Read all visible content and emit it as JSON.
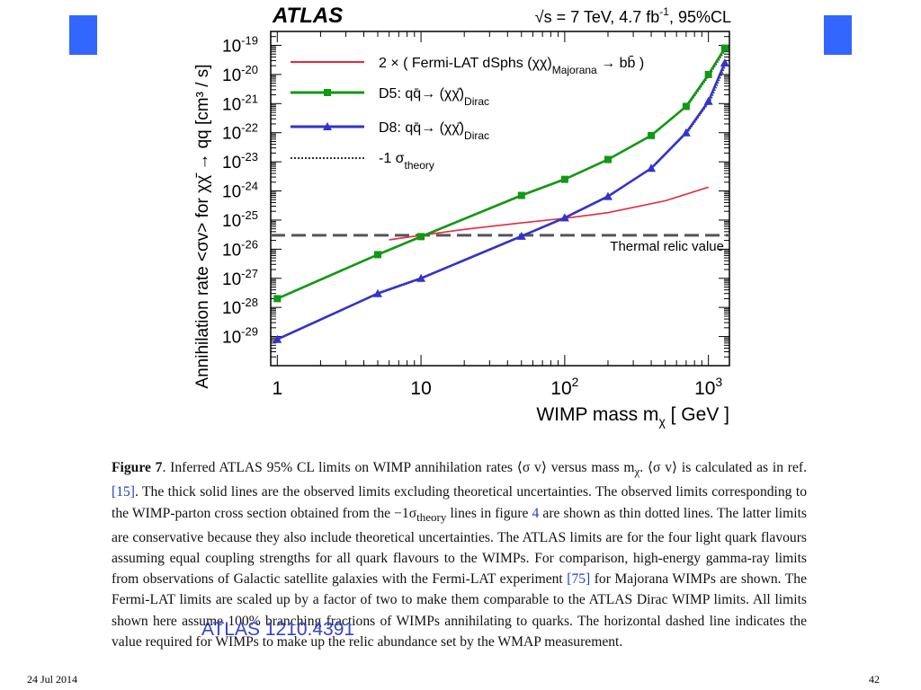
{
  "slide": {
    "date": "24 Jul 2014",
    "page_number": "42",
    "reference": "ATLAS 1210.4391",
    "accent_color": "#3366ff"
  },
  "caption": {
    "label": "Figure 7",
    "text_1": ". Inferred ATLAS 95% CL limits on WIMP annihilation rates ⟨σ v⟩ versus mass m",
    "text_1_sub": "χ",
    "text_2": ". ⟨σ v⟩ is calculated as in ref. ",
    "ref_1": "[15]",
    "text_3": ". The thick solid lines are the observed limits excluding theoretical uncertainties. The observed limits corresponding to the WIMP-parton cross section obtained from the −1σ",
    "text_3_sub": "theory",
    "text_4": " lines in figure ",
    "ref_2": "4",
    "text_5": " are shown as thin dotted lines. The latter limits are conservative because they also include theoretical uncertainties. The ATLAS limits are for the four light quark flavours assuming equal coupling strengths for all quark flavours to the WIMPs. For comparison, high-energy gamma-ray limits from observations of Galactic satellite galaxies with the Fermi-LAT experiment ",
    "ref_3": "[75]",
    "text_6": " for Majorana WIMPs are shown. The Fermi-LAT limits are scaled up by a factor of two to make them comparable to the ATLAS Dirac WIMP limits. All limits shown here assume 100% branching fractions of WIMPs annihilating to quarks. The horizontal dashed line indicates the value required for WIMPs to make up the relic abundance set by the WMAP measurement."
  },
  "chart_data": {
    "type": "line",
    "experiment_label": "ATLAS",
    "energy_label": "√s = 7 TeV, 4.7 fb",
    "energy_sup": "-1",
    "energy_suffix": ", 95%CL",
    "xlabel": "WIMP mass m",
    "xlabel_sub": "χ",
    "xlabel_suffix": " [ GeV ]",
    "ylabel": "Annihilation rate <σv> for χχ̄ → qq  [cm³ / s]",
    "xscale": "log",
    "yscale": "log",
    "xlim": [
      0.9,
      1400
    ],
    "ylim": [
      1e-30,
      3e-19
    ],
    "x_ticks": [
      {
        "v": 1,
        "base": "1",
        "sup": ""
      },
      {
        "v": 10,
        "base": "10",
        "sup": ""
      },
      {
        "v": 100,
        "base": "10",
        "sup": "2"
      },
      {
        "v": 1000,
        "base": "10",
        "sup": "3"
      }
    ],
    "y_ticks": [
      {
        "v": 1e-19,
        "base": "10",
        "sup": "-19"
      },
      {
        "v": 1e-20,
        "base": "10",
        "sup": "-20"
      },
      {
        "v": 1e-21,
        "base": "10",
        "sup": "-21"
      },
      {
        "v": 1e-22,
        "base": "10",
        "sup": "-22"
      },
      {
        "v": 1e-23,
        "base": "10",
        "sup": "-23"
      },
      {
        "v": 1e-24,
        "base": "10",
        "sup": "-24"
      },
      {
        "v": 1e-25,
        "base": "10",
        "sup": "-25"
      },
      {
        "v": 1e-26,
        "base": "10",
        "sup": "-26"
      },
      {
        "v": 1e-27,
        "base": "10",
        "sup": "-27"
      },
      {
        "v": 1e-28,
        "base": "10",
        "sup": "-28"
      },
      {
        "v": 1e-29,
        "base": "10",
        "sup": "-29"
      }
    ],
    "thermal_relic": {
      "value": 3e-26,
      "label": "Thermal relic value"
    },
    "series": [
      {
        "name": "2 × ( Fermi-LAT dSphs (χχ)Majorana → bb̄ )",
        "legend_main": "2 × ( Fermi-LAT dSphs (χχ)",
        "legend_sub": "Majorana",
        "legend_end": " → bb̄ )",
        "color": "#e8283c",
        "style": "line",
        "x": [
          6,
          10,
          20,
          50,
          100,
          200,
          500,
          1000
        ],
        "y": [
          2.1e-26,
          3e-26,
          4.8e-26,
          8e-26,
          1.15e-25,
          1.8e-25,
          4.6e-25,
          1.35e-24
        ]
      },
      {
        "name": "D5: qq̄ → (χχ̄)Dirac",
        "legend_main": "D5: qq̄→ (χχ̄)",
        "legend_sub": "Dirac",
        "legend_end": "",
        "color": "#119911",
        "style": "line-square",
        "x": [
          1,
          5,
          10,
          50,
          100,
          200,
          400,
          700,
          1000,
          1300
        ],
        "y": [
          2e-28,
          6.5e-27,
          2.7e-26,
          7e-25,
          2.5e-24,
          1.2e-23,
          8e-23,
          8e-22,
          1e-20,
          8e-20
        ]
      },
      {
        "name": "D8: qq̄ → (χχ̄)Dirac",
        "legend_main": "D8: qq̄→ (χχ̄)",
        "legend_sub": "Dirac",
        "legend_end": "",
        "color": "#3333cc",
        "style": "line-triangle",
        "x": [
          1,
          5,
          10,
          50,
          100,
          200,
          400,
          700,
          1000,
          1300
        ],
        "y": [
          8e-30,
          3e-28,
          1e-27,
          2.8e-26,
          1.2e-25,
          6.5e-25,
          6e-24,
          1e-22,
          1.2e-21,
          2.5e-20
        ]
      }
    ],
    "theory_legend": {
      "main": "-1 σ",
      "sub": "theory"
    }
  }
}
